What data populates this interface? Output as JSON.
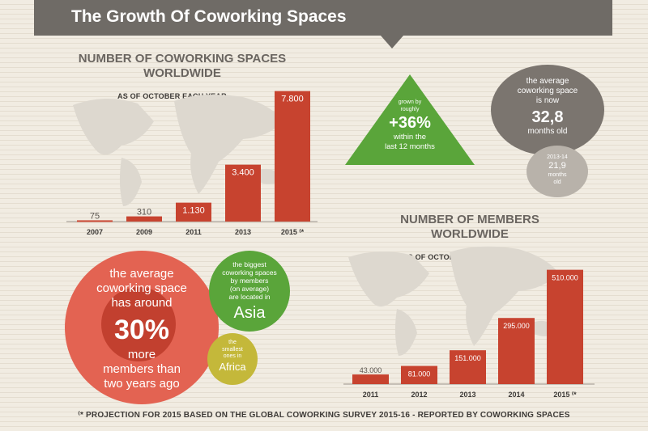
{
  "header": {
    "title": "The Growth Of Coworking Spaces"
  },
  "chart_data": [
    {
      "type": "bar",
      "title": "NUMBER OF COWORKING SPACES WORLDWIDE",
      "subtitle": "AS OF OCTOBER EACH YEAR",
      "categories": [
        "2007",
        "2009",
        "2011",
        "2013",
        "2015 ⁽*"
      ],
      "values": [
        75,
        310,
        1130,
        3400,
        7800
      ],
      "data_labels": [
        "75",
        "310",
        "1.130",
        "3.400",
        "7.800"
      ],
      "ylim": [
        0,
        8700
      ],
      "color": "#c7432f"
    },
    {
      "type": "bar",
      "title": "NUMBER OF MEMBERS WORLDWIDE",
      "subtitle": "AS OF OCTOBER EACH YEAR",
      "categories": [
        "2011",
        "2012",
        "2013",
        "2014",
        "2015 ⁽*"
      ],
      "values": [
        43000,
        81000,
        151000,
        295000,
        510000
      ],
      "data_labels": [
        "43.000",
        "81.000",
        "151.000",
        "295.000",
        "510.000"
      ],
      "ylim": [
        0,
        570000
      ],
      "color": "#c7432f"
    }
  ],
  "growth": {
    "pre": "grown by roughly",
    "value": "+36%",
    "post1": "within the",
    "post2": "last 12 months"
  },
  "average_age": {
    "line1": "the average",
    "line2": "coworking space",
    "line3": "is now",
    "value": "32,8",
    "unit": "months old"
  },
  "previous_age": {
    "period": "2013-14",
    "value": "21,9",
    "unit1": "months",
    "unit2": "old"
  },
  "members_growth": {
    "line1": "the average",
    "line2": "coworking space",
    "line3": "has around",
    "value": "30%",
    "line4": "more",
    "line5": "members than",
    "line6": "two years ago"
  },
  "asia": {
    "line1": "the biggest",
    "line2": "coworking spaces",
    "line3": "by members",
    "line4": "(on average)",
    "line5": "are located in",
    "value": "Asia"
  },
  "africa": {
    "line1": "the",
    "line2": "smallest",
    "line3": "ones in",
    "value": "Africa"
  },
  "footer": "⁽* PROJECTION FOR 2015 BASED ON THE GLOBAL COWORKING SURVEY 2015-16 - REPORTED BY COWORKING SPACES",
  "colors": {
    "header": "#6f6b66",
    "bar": "#c7432f",
    "green": "#5aa53a",
    "red": "#e36352",
    "olive": "#c4b83a",
    "grey": "#7b756f"
  }
}
